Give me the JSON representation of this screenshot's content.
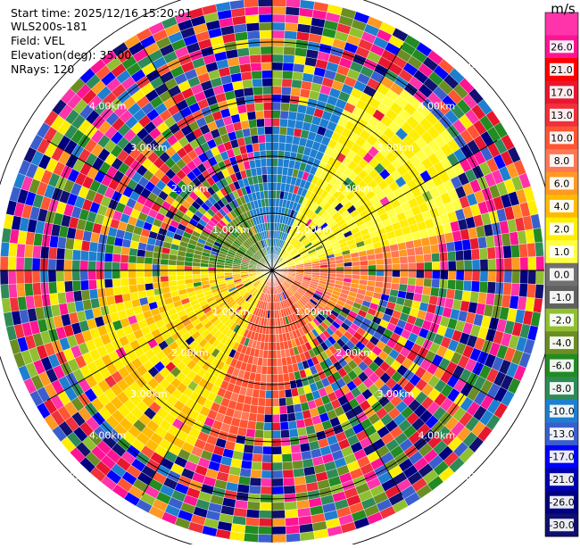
{
  "header": {
    "start_time": "Start time: 2025/12/16 15:20:01",
    "instrument": "WLS200s-181",
    "field": "Field: VEL",
    "elevation": "Elevation(deg): 35.00",
    "nrays": "NRays: 120"
  },
  "colorbar": {
    "unit": "m/s",
    "ticks": [
      "26.0",
      "21.0",
      "17.0",
      "13.0",
      "10.0",
      "8.0",
      "6.0",
      "4.0",
      "2.0",
      "1.0",
      "0.0",
      "-1.0",
      "-2.0",
      "-4.0",
      "-6.0",
      "-8.0",
      "-10.0",
      "-13.0",
      "-17.0",
      "-21.0",
      "-26.0",
      "-30.0"
    ],
    "colors": [
      "#ff33aa",
      "#ff1493",
      "#ff0000",
      "#e8172f",
      "#f0303a",
      "#ff5533",
      "#ff7755",
      "#ff9922",
      "#ffbb00",
      "#ffee00",
      "#ffff44",
      "#707070",
      "#606060",
      "#90c030",
      "#6b8e23",
      "#228b22",
      "#2e8b57",
      "#1e7fd0",
      "#3a5fcd",
      "#0000ff",
      "#0000b0",
      "#000080",
      "#101070"
    ]
  },
  "chart_data": {
    "type": "heatmap",
    "projection": "polar PPI",
    "field": "VEL",
    "units": "m/s",
    "nrays": 120,
    "elevation_deg": 35.0,
    "range_rings_km": [
      1.0,
      2.0,
      3.0,
      4.0,
      5.0
    ],
    "ring_labels": [
      "1.00km",
      "2.00km",
      "3.00km",
      "4.00km",
      "5.00km"
    ],
    "vmin": -30.0,
    "vmax": 26.0,
    "dominant_sectors": [
      {
        "azimuth_deg": 0,
        "velocity": -17.0
      },
      {
        "azimuth_deg": 45,
        "velocity": 2.0
      },
      {
        "azimuth_deg": 110,
        "velocity": 10.0
      },
      {
        "azimuth_deg": 180,
        "velocity": 13.0
      },
      {
        "azimuth_deg": 225,
        "velocity": 4.0
      },
      {
        "azimuth_deg": 315,
        "velocity": -10.0
      }
    ]
  }
}
